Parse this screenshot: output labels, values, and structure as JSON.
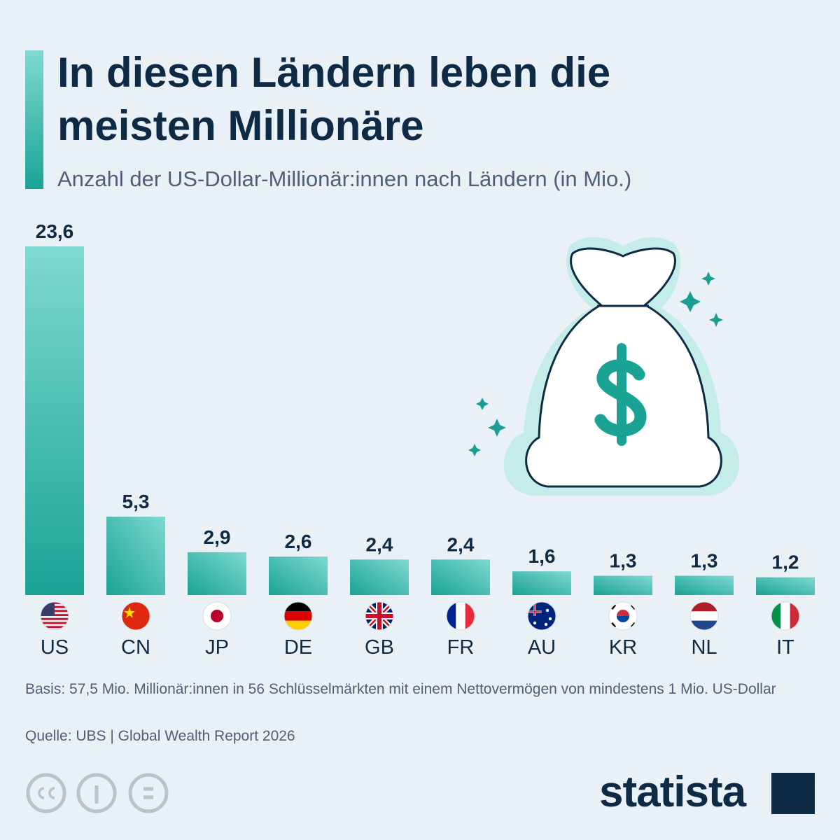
{
  "chart_data": {
    "type": "bar",
    "title": "In diesen Ländern leben die meisten Millionäre",
    "subtitle": "Anzahl der US-Dollar-Millionär:innen nach Ländern (in Mio.)",
    "categories": [
      "US",
      "CN",
      "JP",
      "DE",
      "GB",
      "FR",
      "AU",
      "KR",
      "NL",
      "IT"
    ],
    "values": [
      23.6,
      5.3,
      2.9,
      2.6,
      2.4,
      2.4,
      1.6,
      1.3,
      1.3,
      1.2
    ],
    "value_labels": [
      "23,6",
      "5,3",
      "2,9",
      "2,6",
      "2,4",
      "2,4",
      "1,6",
      "1,3",
      "1,3",
      "1,2"
    ],
    "color": "#1aa395",
    "note": "Basis: 57,5 Mio. Millionär:innen in 56 Schlüsselmärkten mit einem Nettovermögen von mindestens 1 Mio. US-Dollar",
    "source": "Quelle: UBS | Global Wealth Report 2026",
    "logo": "statista"
  }
}
